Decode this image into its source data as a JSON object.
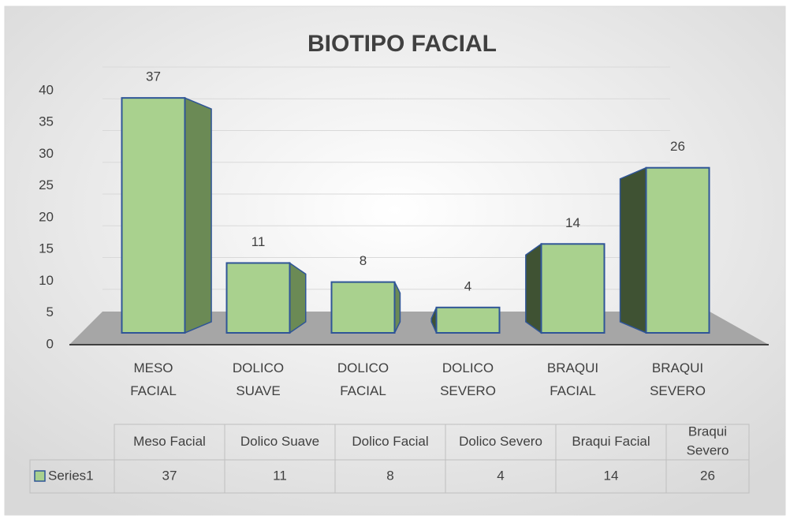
{
  "chart_data": {
    "type": "bar3d",
    "title": "BIOTIPO FACIAL",
    "categories": [
      "MESO FACIAL",
      "DOLICO SUAVE",
      "DOLICO FACIAL",
      "DOLICO SEVERO",
      "BRAQUI FACIAL",
      "BRAQUI SEVERO"
    ],
    "table_categories": [
      "Meso Facial",
      "Dolico Suave",
      "Dolico Facial",
      "Dolico Severo",
      "Braqui Facial",
      "Braqui Severo"
    ],
    "series": [
      {
        "name": "Series1",
        "color": "#a9d18e",
        "values": [
          37,
          11,
          8,
          4,
          14,
          26
        ]
      }
    ],
    "ylim": [
      0,
      40
    ],
    "yticks": [
      0,
      5,
      10,
      15,
      20,
      25,
      30,
      35,
      40
    ],
    "grid": true
  }
}
